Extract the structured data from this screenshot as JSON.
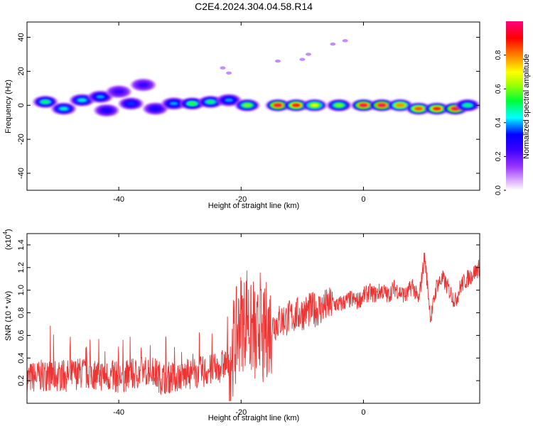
{
  "figure": {
    "title": "C2E4.2024.304.04.58.R14"
  },
  "chart_data": [
    {
      "type": "heatmap",
      "xlabel": "Height of straight line (km)",
      "ylabel": "Frequency (Hz)",
      "xlim": [
        -55,
        19
      ],
      "ylim": [
        -50,
        49
      ],
      "xticks": [
        -40,
        -20,
        0
      ],
      "yticks": [
        -40,
        -20,
        0,
        20,
        40
      ],
      "colorbar": {
        "label": "Normalized spectral amplitude",
        "ticks": [
          "0.0",
          "0.2",
          "0.4",
          "0.6",
          "0.8"
        ],
        "range": [
          0,
          1
        ],
        "colors": [
          "#ffffff",
          "#c070ff",
          "#6000ff",
          "#0000ff",
          "#00ffff",
          "#00ff00",
          "#ffff00",
          "#ff8000",
          "#ff0000",
          "#ff0080"
        ]
      },
      "grid": false,
      "blobs": [
        {
          "x": -52,
          "f": 2,
          "a": 0.5
        },
        {
          "x": -49,
          "f": -2,
          "a": 0.45
        },
        {
          "x": -46,
          "f": 3,
          "a": 0.45
        },
        {
          "x": -43,
          "f": 5,
          "a": 0.4
        },
        {
          "x": -42,
          "f": -3,
          "a": 0.3
        },
        {
          "x": -40,
          "f": 8,
          "a": 0.25
        },
        {
          "x": -38,
          "f": 1,
          "a": 0.35
        },
        {
          "x": -36,
          "f": 12,
          "a": 0.25
        },
        {
          "x": -34,
          "f": -2,
          "a": 0.3
        },
        {
          "x": -31,
          "f": 1,
          "a": 0.4
        },
        {
          "x": -28,
          "f": 1,
          "a": 0.55
        },
        {
          "x": -25,
          "f": 2,
          "a": 0.5
        },
        {
          "x": -22,
          "f": 3,
          "a": 0.4
        },
        {
          "x": -19,
          "f": 0,
          "a": 0.6
        },
        {
          "x": -14,
          "f": 0,
          "a": 0.95
        },
        {
          "x": -11,
          "f": 0,
          "a": 0.9
        },
        {
          "x": -8,
          "f": 0,
          "a": 0.7
        },
        {
          "x": -4,
          "f": 0,
          "a": 0.6
        },
        {
          "x": 0,
          "f": 0,
          "a": 0.95
        },
        {
          "x": 3,
          "f": 0,
          "a": 0.97
        },
        {
          "x": 6,
          "f": 0,
          "a": 0.8
        },
        {
          "x": 9,
          "f": -2,
          "a": 0.85
        },
        {
          "x": 12,
          "f": -2,
          "a": 0.9
        },
        {
          "x": 15,
          "f": -2,
          "a": 0.95
        },
        {
          "x": 17,
          "f": 0,
          "a": 0.5
        }
      ],
      "faint_points": [
        {
          "x": -23,
          "f": 22
        },
        {
          "x": -22,
          "f": 19
        },
        {
          "x": -14,
          "f": 26
        },
        {
          "x": -10,
          "f": 27
        },
        {
          "x": -9,
          "f": 30
        },
        {
          "x": -5,
          "f": 36
        },
        {
          "x": -3,
          "f": 38
        }
      ]
    },
    {
      "type": "line",
      "xlabel": "Height of straight line (km)",
      "ylabel": "SNR (10 * v/v)",
      "y_multiplier": "(x10",
      "y_multiplier_exp": "4",
      "y_multiplier_close": ")",
      "xlim": [
        -55,
        19
      ],
      "ylim": [
        0,
        1.5
      ],
      "xticks": [
        -40,
        -20,
        0
      ],
      "yticks": [
        0.2,
        0.4,
        0.6,
        0.8,
        1.0,
        1.2,
        1.4
      ],
      "ytick_labels": [
        "0.2",
        "0.4",
        "0.6",
        "0.8",
        "1.0",
        "1.2",
        "1.4"
      ],
      "color": "#ee3333",
      "grid": false,
      "series": [
        {
          "x": [
            -55,
            -52,
            -49,
            -46,
            -43,
            -40,
            -37,
            -35,
            -33,
            -30,
            -28,
            -26,
            -24,
            -22,
            -21,
            -20,
            -19.5,
            -19,
            -18.5,
            -18,
            -17.5,
            -17,
            -16.5,
            -16,
            -15,
            -14,
            -13,
            -12,
            -11,
            -10,
            -9,
            -8,
            -7,
            -6,
            -5,
            -4,
            -3,
            -2,
            -1,
            0,
            1,
            2,
            3,
            4,
            5,
            6,
            7,
            8,
            9,
            10,
            11,
            12,
            13,
            14,
            15,
            16,
            17,
            18,
            19
          ],
          "y": [
            0.22,
            0.25,
            0.24,
            0.27,
            0.25,
            0.23,
            0.26,
            0.3,
            0.22,
            0.24,
            0.26,
            0.28,
            0.3,
            0.38,
            0.55,
            0.75,
            0.7,
            0.85,
            0.6,
            0.7,
            0.45,
            0.8,
            0.5,
            0.65,
            0.68,
            0.72,
            0.74,
            0.76,
            0.78,
            0.8,
            0.82,
            0.83,
            0.84,
            0.86,
            0.88,
            0.87,
            0.9,
            0.92,
            0.9,
            0.95,
            0.98,
            0.96,
            1.0,
            0.95,
            1.02,
            0.98,
            0.95,
            1.05,
            0.9,
            1.3,
            0.75,
            1.05,
            1.1,
            1.0,
            0.9,
            1.05,
            1.1,
            1.15,
            1.2
          ]
        }
      ]
    }
  ]
}
